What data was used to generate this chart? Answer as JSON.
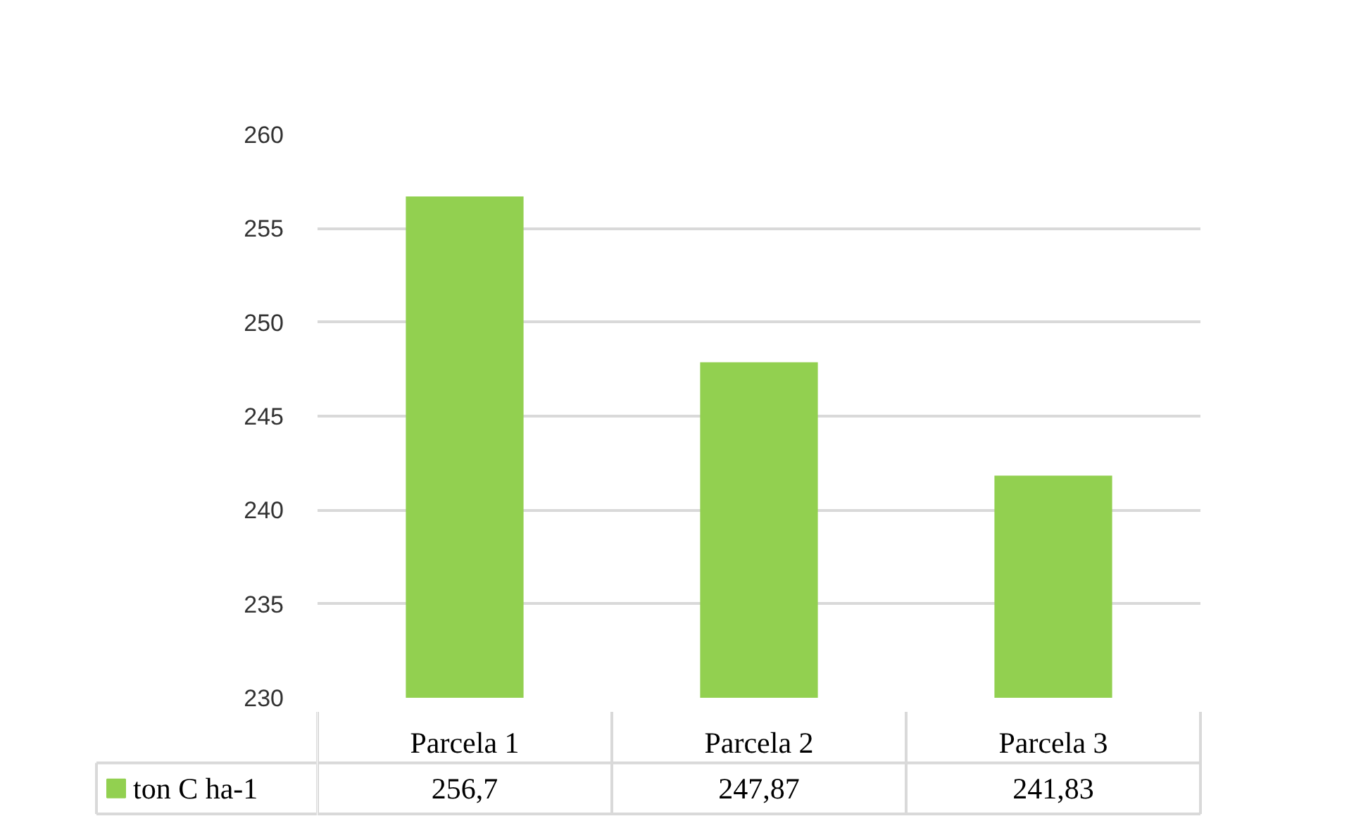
{
  "chart_data": {
    "type": "bar",
    "categories": [
      "Parcela 1",
      "Parcela 2",
      "Parcela 3"
    ],
    "series": [
      {
        "name": "ton C ha-1",
        "color": "#92d050",
        "values": [
          256.7,
          247.87,
          241.83
        ],
        "value_labels": [
          "256,7",
          "247,87",
          "241,83"
        ]
      }
    ],
    "ylim": [
      230,
      260
    ],
    "yticks": [
      230,
      235,
      240,
      245,
      250,
      255,
      260
    ],
    "grid": "y",
    "legend": "bottom"
  }
}
